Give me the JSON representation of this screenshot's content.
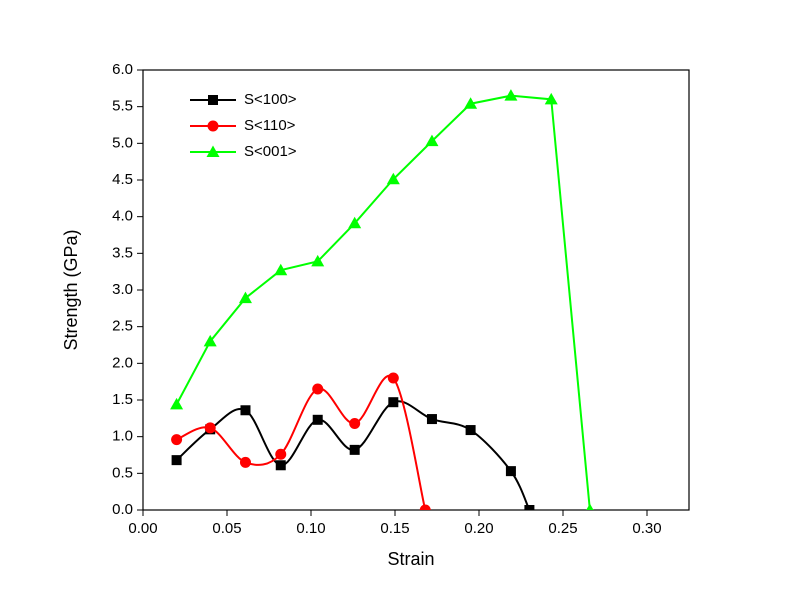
{
  "chart_data": {
    "type": "line",
    "x_label": "Strain",
    "y_label": "Strength  (GPa)",
    "xlim": [
      0,
      0.325
    ],
    "ylim": [
      0,
      6
    ],
    "xticks": [
      {
        "value": 0,
        "label": "0.00"
      },
      {
        "value": 0.05,
        "label": "0.05"
      },
      {
        "value": 0.1,
        "label": "0.10"
      },
      {
        "value": 0.15,
        "label": "0.15"
      },
      {
        "value": 0.2,
        "label": "0.20"
      },
      {
        "value": 0.25,
        "label": "0.25"
      },
      {
        "value": 0.3,
        "label": "0.30"
      }
    ],
    "yticks": [
      {
        "value": 0,
        "label": "0.0"
      },
      {
        "value": 0.5,
        "label": "0.5"
      },
      {
        "value": 1,
        "label": "1.0"
      },
      {
        "value": 1.5,
        "label": "1.5"
      },
      {
        "value": 2,
        "label": "2.0"
      },
      {
        "value": 2.5,
        "label": "2.5"
      },
      {
        "value": 3,
        "label": "3.0"
      },
      {
        "value": 3.5,
        "label": "3.5"
      },
      {
        "value": 4,
        "label": "4.0"
      },
      {
        "value": 4.5,
        "label": "4.5"
      },
      {
        "value": 5,
        "label": "5.0"
      },
      {
        "value": 5.5,
        "label": "5.5"
      },
      {
        "value": 6,
        "label": "6.0"
      }
    ],
    "legend": "upper left",
    "series": [
      {
        "name": "S<100>",
        "color": "#000000",
        "marker": "square",
        "smooth": true,
        "x": [
          0.02,
          0.04,
          0.061,
          0.082,
          0.104,
          0.126,
          0.149,
          0.172,
          0.195,
          0.219,
          0.23
        ],
        "values": [
          0.68,
          1.1,
          1.36,
          0.61,
          1.23,
          0.82,
          1.47,
          1.24,
          1.09,
          0.53,
          0
        ]
      },
      {
        "name": "S<110>",
        "color": "#ff0000",
        "marker": "circle",
        "smooth": true,
        "x": [
          0.02,
          0.04,
          0.061,
          0.082,
          0.104,
          0.126,
          0.149,
          0.168
        ],
        "values": [
          0.96,
          1.12,
          0.65,
          0.76,
          1.65,
          1.18,
          1.8,
          0
        ]
      },
      {
        "name": "S<001>",
        "color": "#00ff00",
        "marker": "triangle",
        "smooth": false,
        "x": [
          0.02,
          0.04,
          0.061,
          0.082,
          0.104,
          0.126,
          0.149,
          0.172,
          0.195,
          0.219,
          0.243,
          0.266
        ],
        "values": [
          1.44,
          2.3,
          2.89,
          3.27,
          3.39,
          3.91,
          4.51,
          5.03,
          5.54,
          5.65,
          5.6,
          0
        ]
      }
    ]
  }
}
